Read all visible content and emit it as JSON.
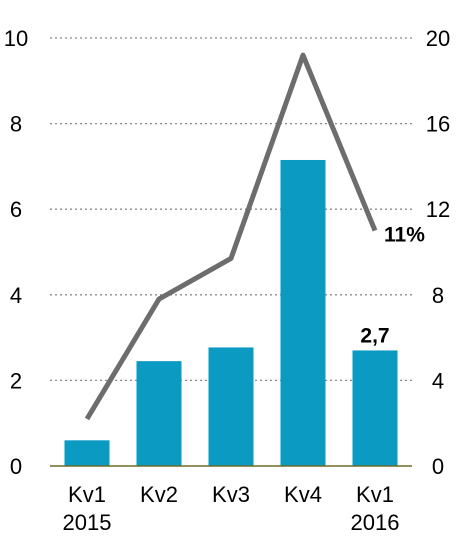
{
  "chart_data": {
    "type": "bar",
    "categories": [
      [
        "Kv1",
        "2015"
      ],
      [
        "Kv2",
        ""
      ],
      [
        "Kv3",
        ""
      ],
      [
        "Kv4",
        ""
      ],
      [
        "Kv1",
        "2016"
      ]
    ],
    "series": [
      {
        "type": "bar",
        "axis": "left",
        "color": "#0a9ac2",
        "values": [
          0.6,
          2.45,
          2.77,
          7.15,
          2.7
        ]
      },
      {
        "type": "line",
        "axis": "right",
        "color": "#6d6d6d",
        "values": [
          2.2,
          7.8,
          9.7,
          19.2,
          11
        ]
      }
    ],
    "left_axis": {
      "ylim": [
        0,
        10
      ],
      "ticks": [
        "0",
        "2",
        "4",
        "6",
        "8",
        "10"
      ]
    },
    "right_axis": {
      "ylim": [
        0,
        20
      ],
      "ticks": [
        "0",
        "4",
        "8",
        "12",
        "16",
        "20"
      ]
    },
    "grid": "dotted horizontal",
    "annotations": {
      "bar_last": "2,7",
      "line_last": "11%"
    }
  }
}
